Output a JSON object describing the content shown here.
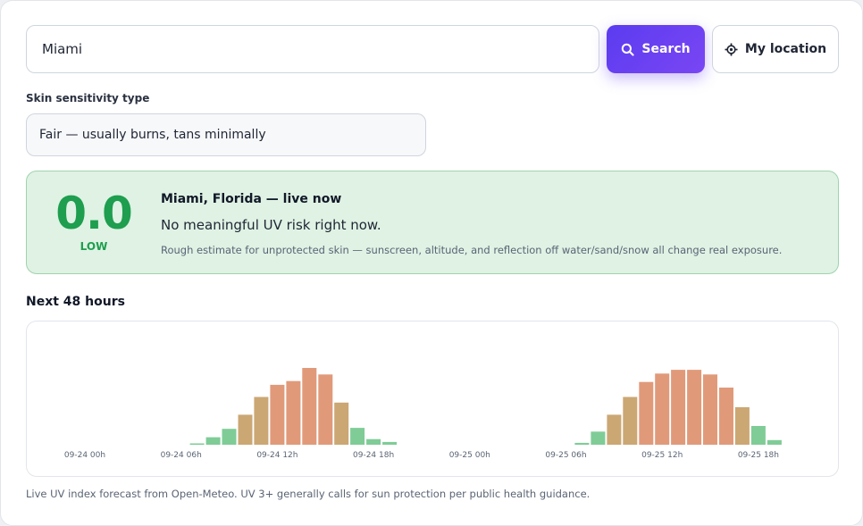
{
  "search": {
    "value": "Miami",
    "button_label": "Search",
    "location_label": "My location"
  },
  "sensitivity": {
    "label": "Skin sensitivity type",
    "selected": "Fair — usually burns, tans minimally"
  },
  "current": {
    "uv_value": "0.0",
    "level": "LOW",
    "title": "Miami, Florida — live now",
    "message": "No meaningful UV risk right now.",
    "note": "Rough estimate for unprotected skin — sunscreen, altitude, and reflection off water/sand/snow all change real exposure."
  },
  "forecast": {
    "title": "Next 48 hours"
  },
  "footnote": "Live UV index forecast from Open-Meteo. UV 3+ generally calls for sun protection per public health guidance.",
  "colors": {
    "accent": "#6a42f2",
    "uv_low": "#7fcc97",
    "uv_moderate": "#cba774",
    "uv_high": "#e09a7a",
    "status_bg": "#dff2e4",
    "status_text": "#1e9e4e"
  },
  "chart_data": {
    "type": "bar",
    "tick_labels": [
      "09-24 00h",
      "09-24 06h",
      "09-24 12h",
      "09-24 18h",
      "09-25 00h",
      "09-25 06h",
      "09-25 12h",
      "09-25 18h"
    ],
    "tick_hours": [
      0,
      6,
      12,
      18,
      24,
      30,
      36,
      42
    ],
    "hours": [
      0,
      1,
      2,
      3,
      4,
      5,
      6,
      7,
      8,
      9,
      10,
      11,
      12,
      13,
      14,
      15,
      16,
      17,
      18,
      19,
      20,
      21,
      22,
      23,
      24,
      25,
      26,
      27,
      28,
      29,
      30,
      31,
      32,
      33,
      34,
      35,
      36,
      37,
      38,
      39,
      40,
      41,
      42,
      43,
      44,
      45,
      46,
      47
    ],
    "values": [
      0,
      0,
      0,
      0,
      0,
      0,
      0,
      0.1,
      0.8,
      1.7,
      3.2,
      5.1,
      6.4,
      6.8,
      8.2,
      7.5,
      4.5,
      1.8,
      0.6,
      0.3,
      0,
      0,
      0,
      0,
      0,
      0,
      0,
      0,
      0,
      0,
      0,
      0.2,
      1.4,
      3.2,
      5.1,
      6.7,
      7.6,
      8.0,
      8.0,
      7.5,
      6.1,
      4.0,
      2.0,
      0.5,
      0,
      0,
      0,
      0
    ],
    "ylim": [
      0,
      9.5
    ]
  }
}
